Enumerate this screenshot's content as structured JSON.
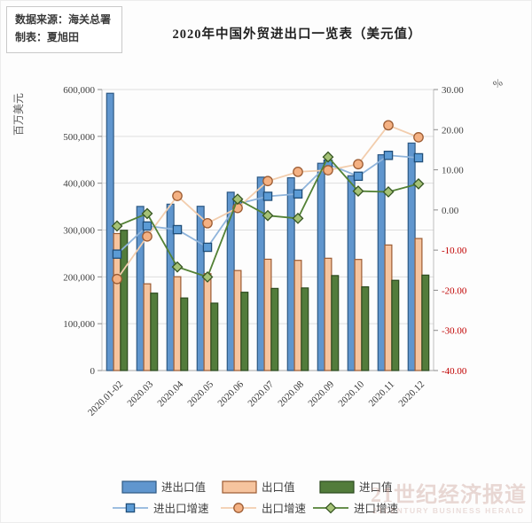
{
  "source_box": {
    "line1": "数据来源：海关总署",
    "line2": "制表：夏旭田"
  },
  "title": "2020年中国外贸进出口一览表（美元值）",
  "watermark": {
    "cn": "21世纪经济报道",
    "en": "21CENTURY BUSINESS HERALD"
  },
  "chart_data": {
    "type": "bar",
    "subtype": "bar+line combo, dual axis",
    "title": "2020年中国外贸进出口一览表（美元值）",
    "categories": [
      "2020.01-02",
      "2020.03",
      "2020.04",
      "2020.05",
      "2020.06",
      "2020.07",
      "2020.08",
      "2020.09",
      "2020.10",
      "2020.11",
      "2020.12"
    ],
    "left_axis": {
      "title": "百万美元",
      "min": 0,
      "max": 600000,
      "step": 100000,
      "tick_labels": [
        "0",
        "100,000",
        "200,000",
        "300,000",
        "400,000",
        "500,000",
        "600,000"
      ]
    },
    "right_axis": {
      "title": "%",
      "min": -40,
      "max": 30,
      "step": 10,
      "negative_label_color": "#C00000",
      "positive_label_color": "#404040"
    },
    "grid": true,
    "legend_position": "bottom",
    "series": [
      {
        "name": "进出口值",
        "kind": "bar",
        "axis": "left",
        "fill": "#6096CE",
        "stroke": "#2E5984",
        "values": [
          591990,
          350390,
          355180,
          350700,
          380740,
          412930,
          411590,
          442520,
          415920,
          460720,
          485680
        ]
      },
      {
        "name": "出口值",
        "kind": "bar",
        "axis": "left",
        "fill": "#F6C49E",
        "stroke": "#9C5B32",
        "values": [
          292450,
          185150,
          200280,
          206810,
          213570,
          237630,
          235260,
          239760,
          237180,
          268070,
          281930
        ]
      },
      {
        "name": "进口值",
        "kind": "bar",
        "axis": "left",
        "fill": "#527C3B",
        "stroke": "#2C4A1E",
        "values": [
          299540,
          165250,
          154900,
          143890,
          167150,
          175310,
          176340,
          202760,
          178740,
          192650,
          203750
        ]
      },
      {
        "name": "进出口增速",
        "kind": "line",
        "axis": "right",
        "marker": "square",
        "line_color": "#8FB4DB",
        "marker_fill": "#5B9BD5",
        "marker_stroke": "#1F4E79",
        "values": [
          -11.0,
          -4.0,
          -4.9,
          -9.3,
          1.5,
          3.4,
          4.0,
          11.4,
          8.4,
          13.6,
          13.0
        ]
      },
      {
        "name": "出口增速",
        "kind": "line",
        "axis": "right",
        "marker": "circle",
        "line_color": "#F2CDAD",
        "marker_fill": "#F4B183",
        "marker_stroke": "#9C5B32",
        "values": [
          -17.2,
          -6.6,
          3.5,
          -3.3,
          0.5,
          7.2,
          9.5,
          9.9,
          11.4,
          21.1,
          18.1
        ]
      },
      {
        "name": "进口增速",
        "kind": "line",
        "axis": "right",
        "marker": "diamond",
        "line_color": "#538135",
        "marker_fill": "#A5C276",
        "marker_stroke": "#375623",
        "values": [
          -4.0,
          -0.9,
          -14.2,
          -16.7,
          2.7,
          -1.4,
          -2.1,
          13.2,
          4.7,
          4.5,
          6.5
        ]
      }
    ],
    "colors": {
      "grid": "#dedede",
      "axis_line": "#bfbfbf",
      "baseline": "#a6a6a6",
      "tick_text": "#404040"
    }
  }
}
